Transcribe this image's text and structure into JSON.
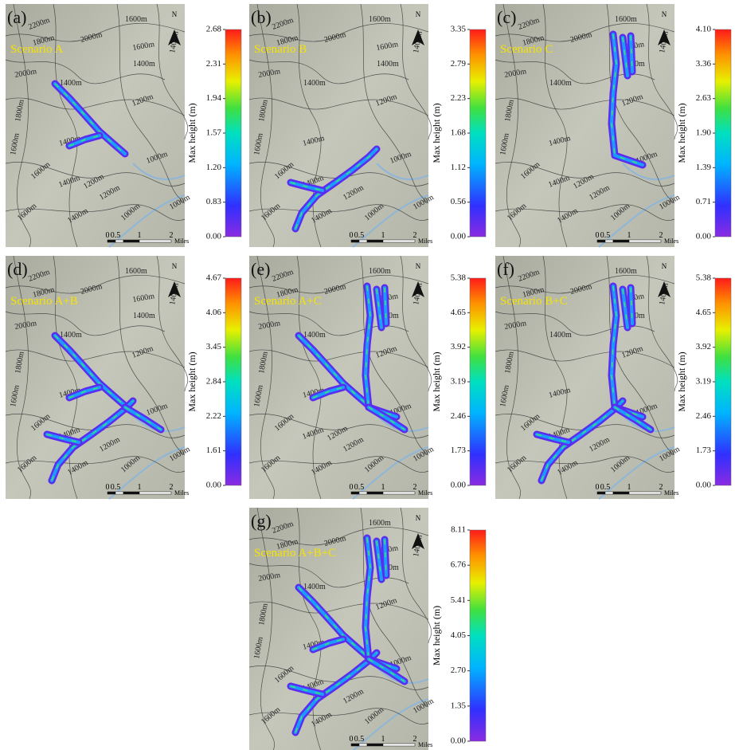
{
  "map": {
    "contour_labels": [
      "1600m",
      "2200m",
      "1800m",
      "2000m",
      "1600m",
      "2000m",
      "1400m",
      "1400m",
      "1400m",
      "1800m",
      "1200m",
      "1600m",
      "1400m",
      "1600m",
      "1400m",
      "1200m",
      "1000m",
      "1000m",
      "1000m",
      "1200m",
      "1400m",
      "1600m"
    ],
    "north": "N",
    "scale": [
      "0",
      "0.5",
      "1",
      "2",
      "Miles"
    ],
    "legend_title": "Max height (m)"
  },
  "panels": [
    {
      "label": "(a)",
      "scenario": "Scenario A",
      "ticks": [
        "2.68",
        "2.31",
        "1.94",
        "1.57",
        "1.20",
        "0.83",
        "0.00"
      ]
    },
    {
      "label": "(b)",
      "scenario": "Scenario B",
      "ticks": [
        "3.35",
        "2.79",
        "2.23",
        "1.68",
        "1.12",
        "0.56",
        "0.00"
      ]
    },
    {
      "label": "(c)",
      "scenario": "Scenario C",
      "ticks": [
        "4.10",
        "3.36",
        "2.63",
        "1.90",
        "1.39",
        "0.71",
        "0.00"
      ]
    },
    {
      "label": "(d)",
      "scenario": "Scenario A+B",
      "ticks": [
        "4.67",
        "4.06",
        "3.45",
        "2.84",
        "2.22",
        "1.61",
        "0.00"
      ]
    },
    {
      "label": "(e)",
      "scenario": "Scenario A+C",
      "ticks": [
        "5.38",
        "4.65",
        "3.92",
        "3.19",
        "2.46",
        "1.73",
        "0.00"
      ]
    },
    {
      "label": "(f)",
      "scenario": "Scenario B+C",
      "ticks": [
        "5.38",
        "4.65",
        "3.92",
        "3.19",
        "2.46",
        "1.73",
        "0.00"
      ]
    },
    {
      "label": "(g)",
      "scenario": "Scenario A+B+C",
      "ticks": [
        "8.11",
        "6.76",
        "5.41",
        "4.05",
        "2.70",
        "1.35",
        "0.00"
      ]
    }
  ]
}
